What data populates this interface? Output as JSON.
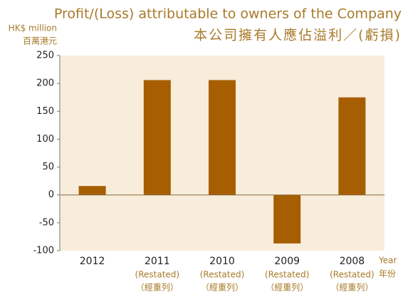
{
  "chart_data": {
    "type": "bar",
    "title": "Profit/(Loss) attributable to owners of the Company",
    "subtitle": "本公司擁有人應佔溢利／(虧損)",
    "y_axis_label": "HK$ million",
    "y_axis_label_zh": "百萬港元",
    "x_axis_label": "Year",
    "x_axis_label_zh": "年份",
    "categories": [
      "2012",
      "2011",
      "2010",
      "2009",
      "2008"
    ],
    "category_notes": [
      null,
      "(Restated)",
      "(Restated)",
      "(Restated)",
      "(Restated)"
    ],
    "category_notes_zh": [
      null,
      "（經重列）",
      "（經重列）",
      "（經重列）",
      "（經重列）"
    ],
    "values": [
      16,
      206,
      206,
      -87,
      175
    ],
    "color": "#a65e00",
    "ylim": [
      -100,
      250
    ],
    "yticks": [
      -100,
      -50,
      0,
      50,
      100,
      150,
      200,
      250
    ],
    "grid": false
  }
}
